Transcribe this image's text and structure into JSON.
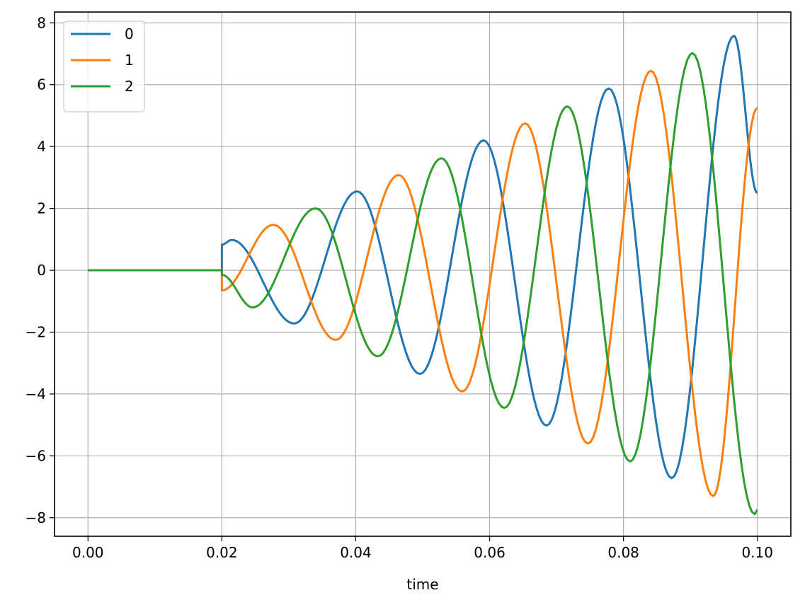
{
  "chart_data": {
    "type": "line",
    "title": "",
    "xlabel": "time",
    "ylabel": "",
    "xlim": [
      -0.005,
      0.105
    ],
    "ylim": [
      -8.6,
      8.35
    ],
    "grid": true,
    "legend_position": "top-left",
    "x_ticks": [
      {
        "value": 0.0,
        "label": "0.00"
      },
      {
        "value": 0.02,
        "label": "0.02"
      },
      {
        "value": 0.04,
        "label": "0.04"
      },
      {
        "value": 0.06,
        "label": "0.06"
      },
      {
        "value": 0.08,
        "label": "0.08"
      },
      {
        "value": 0.1,
        "label": "0.10"
      }
    ],
    "y_ticks": [
      {
        "value": 8,
        "label": "8"
      },
      {
        "value": 6,
        "label": "6"
      },
      {
        "value": 4,
        "label": "4"
      },
      {
        "value": 2,
        "label": "2"
      },
      {
        "value": 0,
        "label": "0"
      },
      {
        "value": -2,
        "label": "−2"
      },
      {
        "value": -4,
        "label": "−4"
      },
      {
        "value": -6,
        "label": "−6"
      },
      {
        "value": -8,
        "label": "−8"
      }
    ],
    "series": [
      {
        "name": "0",
        "color": "#1f77b4",
        "x": [
          0.0,
          0.02,
          0.02,
          0.0215,
          0.0308,
          0.0402,
          0.0496,
          0.0591,
          0.0685,
          0.0778,
          0.0872,
          0.0965,
          0.1
        ],
        "y": [
          0,
          0,
          0.83,
          0.98,
          -1.72,
          2.55,
          -3.35,
          4.2,
          -5.02,
          5.88,
          -6.72,
          7.58,
          2.5
        ]
      },
      {
        "name": "1",
        "color": "#ff7f0e",
        "x": [
          0.0,
          0.02,
          0.02,
          0.0277,
          0.037,
          0.0464,
          0.0559,
          0.0653,
          0.0747,
          0.0841,
          0.0934,
          0.1
        ],
        "y": [
          0,
          0,
          -0.65,
          1.47,
          -2.25,
          3.08,
          -3.92,
          4.75,
          -5.6,
          6.45,
          -7.3,
          5.25
        ]
      },
      {
        "name": "2",
        "color": "#2ca02c",
        "x": [
          0.0,
          0.02,
          0.02,
          0.0246,
          0.034,
          0.0433,
          0.0528,
          0.0622,
          0.0716,
          0.081,
          0.0903,
          0.0996,
          0.1
        ],
        "y": [
          0,
          0,
          -0.15,
          -1.2,
          2.0,
          -2.78,
          3.62,
          -4.45,
          5.3,
          -6.18,
          7.02,
          -7.88,
          -7.75
        ]
      }
    ]
  }
}
